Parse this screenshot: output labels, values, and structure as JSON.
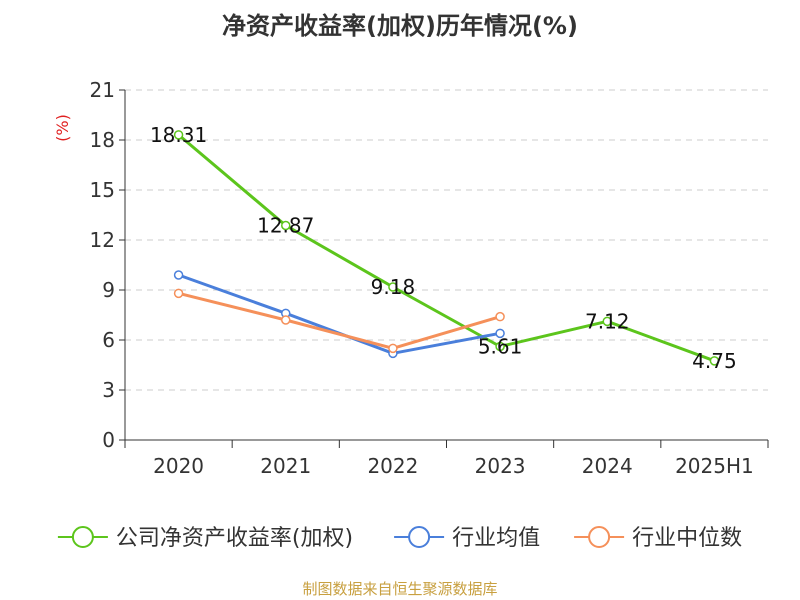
{
  "chart_data": {
    "type": "line",
    "title": "净资产收益率(加权)历年情况(%)",
    "ylabel": "(%)",
    "xlabel": "",
    "categories": [
      "2020",
      "2021",
      "2022",
      "2023",
      "2024",
      "2025H1"
    ],
    "ylim": [
      0,
      21
    ],
    "yticks": [
      0,
      3,
      6,
      9,
      12,
      15,
      18,
      21
    ],
    "grid": true,
    "legend_position": "bottom",
    "series": [
      {
        "name": "公司净资产收益率(加权)",
        "color": "#5cc51c",
        "values": [
          18.31,
          12.87,
          9.18,
          5.61,
          7.12,
          4.75
        ],
        "labels": [
          "18.31",
          "12.87",
          "9.18",
          "5.61",
          "7.12",
          "4.75"
        ],
        "show_labels": true
      },
      {
        "name": "行业均值",
        "color": "#4a7fdb",
        "values": [
          9.9,
          7.6,
          5.2,
          6.4,
          null,
          null
        ],
        "show_labels": false
      },
      {
        "name": "行业中位数",
        "color": "#f5905a",
        "values": [
          8.8,
          7.2,
          5.5,
          7.4,
          null,
          null
        ],
        "show_labels": false
      }
    ],
    "source": "制图数据来自恒生聚源数据库"
  }
}
